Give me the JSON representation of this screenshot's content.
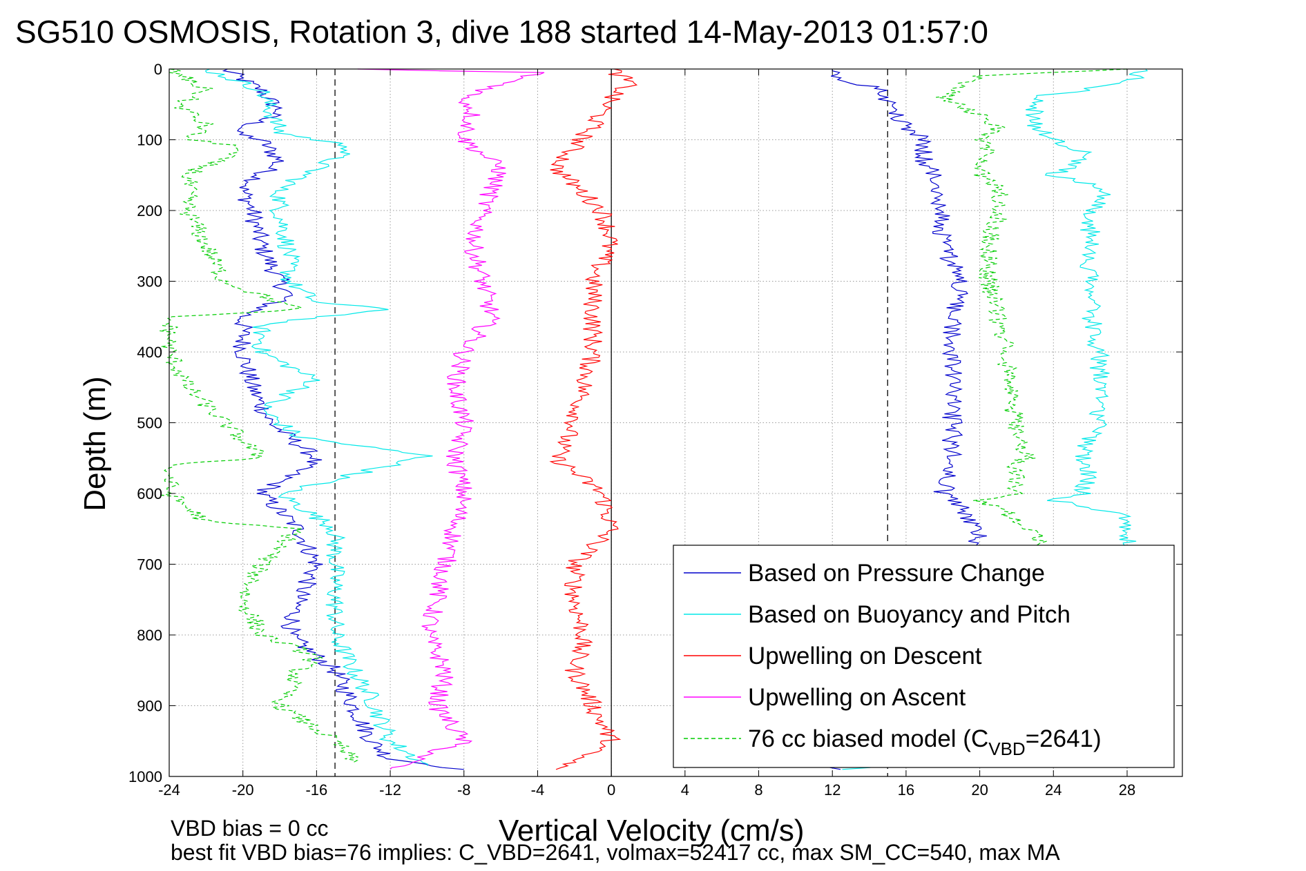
{
  "chart_data": {
    "type": "line",
    "title": "SG510 OSMOSIS, Rotation 3, dive 188 started 14-May-2013 01:57:0",
    "xlabel": "Vertical Velocity (cm/s)",
    "ylabel": "Depth (m)",
    "xlim": [
      -24,
      31
    ],
    "ylim": [
      1000,
      0
    ],
    "y_reversed": true,
    "grid": true,
    "grid_style": "dotted",
    "xticks": [
      "-24",
      "-20",
      "-16",
      "-12",
      "-8",
      "-4",
      "0",
      "4",
      "8",
      "12",
      "16",
      "20",
      "24",
      "28"
    ],
    "yticks": [
      "0",
      "100",
      "200",
      "300",
      "400",
      "500",
      "600",
      "700",
      "800",
      "900",
      "1000"
    ],
    "reference_lines": [
      {
        "type": "vertical",
        "x": 0,
        "style": "solid",
        "color": "#000000"
      },
      {
        "type": "vertical",
        "x": -15,
        "style": "dashed",
        "color": "#000000"
      },
      {
        "type": "vertical",
        "x": 15,
        "style": "dashed",
        "color": "#000000"
      }
    ],
    "legend_position": "bottom-right",
    "legend": [
      {
        "label": "Based on Pressure Change",
        "color": "#0000cc",
        "style": "solid"
      },
      {
        "label": "Based on Buoyancy and Pitch",
        "color": "#00e8e8",
        "style": "solid"
      },
      {
        "label": "Upwelling on Descent",
        "color": "#ff0000",
        "style": "solid"
      },
      {
        "label": "Upwelling on Ascent",
        "color": "#ff00ff",
        "style": "solid"
      },
      {
        "label_main": "76 cc biased model (C",
        "label_sub": "VBD",
        "label_end": "=2641)",
        "color": "#00cc00",
        "style": "dashed"
      }
    ],
    "series": [
      {
        "name": "Based on Pressure Change (descent)",
        "color": "#0000cc",
        "dash": false,
        "depth": [
          0,
          30,
          60,
          90,
          100,
          130,
          170,
          200,
          250,
          300,
          320,
          350,
          400,
          450,
          500,
          550,
          600,
          650,
          700,
          750,
          800,
          850,
          900,
          950,
          975,
          990
        ],
        "velocity": [
          -21,
          -19,
          -18,
          -20.5,
          -19,
          -18,
          -20,
          -19.5,
          -19,
          -18,
          -17.5,
          -20,
          -20,
          -19.5,
          -18.5,
          -16,
          -19,
          -17,
          -16,
          -17,
          -17.5,
          -15,
          -14,
          -13,
          -12,
          -8
        ]
      },
      {
        "name": "Based on Pressure Change (ascent)",
        "color": "#0000cc",
        "dash": false,
        "depth": [
          990,
          960,
          900,
          850,
          800,
          750,
          700,
          660,
          620,
          600,
          550,
          500,
          450,
          400,
          350,
          300,
          250,
          200,
          150,
          130,
          100,
          80,
          50,
          30,
          10,
          0
        ],
        "velocity": [
          12,
          16,
          18,
          19,
          19.5,
          19.5,
          19.5,
          20,
          19,
          18,
          18.5,
          18.5,
          18.5,
          18.5,
          18.5,
          19,
          18,
          18,
          17.5,
          17,
          17,
          16,
          15,
          15,
          12,
          12
        ]
      },
      {
        "name": "Based on Buoyancy and Pitch (descent)",
        "color": "#00e8e8",
        "dash": false,
        "depth": [
          0,
          30,
          60,
          90,
          110,
          140,
          170,
          200,
          260,
          300,
          330,
          340,
          360,
          400,
          440,
          480,
          520,
          547,
          600,
          650,
          700,
          750,
          800,
          850,
          890,
          950,
          985
        ],
        "velocity": [
          -22,
          -19,
          -18.5,
          -18,
          -14,
          -16,
          -18,
          -18,
          -17.5,
          -17.5,
          -16,
          -12,
          -19,
          -19,
          -16,
          -19,
          -17,
          -10,
          -18,
          -15,
          -15,
          -15,
          -15,
          -14,
          -13,
          -12,
          -10
        ]
      },
      {
        "name": "Based on Buoyancy and Pitch (ascent)",
        "color": "#00e8e8",
        "dash": false,
        "depth": [
          990,
          960,
          920,
          880,
          850,
          800,
          760,
          720,
          690,
          670,
          650,
          630,
          610,
          600,
          570,
          550,
          500,
          450,
          400,
          350,
          300,
          250,
          200,
          170,
          150,
          120,
          100,
          80,
          40,
          20,
          0
        ],
        "velocity": [
          13,
          20,
          30,
          28,
          28,
          28,
          28,
          28,
          28,
          28,
          28,
          28,
          24,
          25.5,
          26,
          25.5,
          26.5,
          26.5,
          26.5,
          26,
          26,
          26,
          26,
          27,
          24,
          26,
          24,
          23,
          23,
          28,
          29
        ]
      },
      {
        "name": "Upwelling on Descent",
        "color": "#ff0000",
        "dash": false,
        "depth": [
          0,
          20,
          40,
          80,
          110,
          140,
          200,
          240,
          300,
          350,
          400,
          450,
          500,
          550,
          600,
          650,
          700,
          750,
          800,
          850,
          900,
          950,
          990
        ],
        "velocity": [
          0,
          1,
          0,
          -1,
          -2,
          -3,
          -0.5,
          0,
          -1,
          -1,
          -1,
          -1.5,
          -2,
          -3,
          -0.5,
          0,
          -2,
          -2,
          -1.5,
          -2,
          -1,
          0,
          -3
        ]
      },
      {
        "name": "Upwelling on Ascent",
        "color": "#ff00ff",
        "dash": false,
        "depth": [
          0,
          5,
          40,
          60,
          100,
          140,
          200,
          250,
          300,
          350,
          400,
          450,
          500,
          550,
          600,
          650,
          700,
          750,
          800,
          850,
          900,
          950,
          990
        ],
        "velocity": [
          -14,
          -4,
          -8,
          -7.5,
          -8,
          -6,
          -7,
          -7.5,
          -7,
          -6.5,
          -8,
          -8.5,
          -8,
          -8.5,
          -8,
          -8.5,
          -9,
          -9.5,
          -10,
          -9,
          -9.5,
          -8,
          -12
        ]
      },
      {
        "name": "76 cc biased model (descent)",
        "color": "#00cc00",
        "dash": true,
        "depth": [
          0,
          30,
          50,
          80,
          100,
          110,
          150,
          200,
          250,
          300,
          340,
          350,
          400,
          450,
          500,
          550,
          560,
          600,
          640,
          650,
          700,
          750,
          800,
          830,
          850,
          900,
          950,
          980
        ],
        "velocity": [
          -24,
          -22,
          -23.5,
          -22,
          -23,
          -20,
          -23,
          -23,
          -22,
          -21,
          -17,
          -24,
          -24,
          -23,
          -21,
          -19,
          -24,
          -24,
          -22,
          -17,
          -19,
          -20,
          -19,
          -16,
          -17,
          -18,
          -15,
          -14
        ]
      },
      {
        "name": "76 cc biased model (ascent)",
        "color": "#00cc00",
        "dash": true,
        "depth": [
          985,
          900,
          850,
          800,
          750,
          700,
          660,
          640,
          620,
          610,
          600,
          560,
          550,
          500,
          450,
          400,
          350,
          300,
          250,
          200,
          170,
          150,
          120,
          100,
          80,
          40,
          10,
          0
        ],
        "velocity": [
          12,
          23,
          24,
          24,
          23.5,
          23.5,
          23,
          22,
          21,
          20,
          22,
          22,
          22.5,
          22,
          21.5,
          21.5,
          21,
          20.5,
          20.5,
          21,
          21,
          20,
          20.5,
          20,
          21,
          18,
          20,
          28
        ]
      }
    ]
  },
  "footer": {
    "line1": "VBD bias = 0 cc",
    "line2": "best fit VBD bias=76 implies: C_VBD=2641, volmax=52417 cc, max SM_CC=540, max MA"
  }
}
